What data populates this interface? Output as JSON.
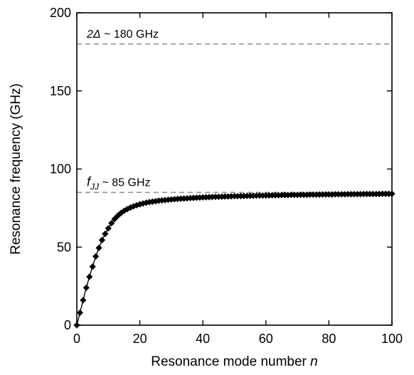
{
  "chart_data": {
    "type": "line",
    "title": "",
    "xlabel": "Resonance mode number",
    "xlabel_var": "n",
    "ylabel": "Resonance frequency (GHz)",
    "xlim": [
      0,
      100
    ],
    "ylim": [
      0,
      200
    ],
    "x_ticks": [
      0,
      20,
      40,
      60,
      80,
      100
    ],
    "y_ticks": [
      0,
      50,
      100,
      150,
      200
    ],
    "grid": false,
    "marker": "diamond",
    "colors": {
      "series": "#000000",
      "reference": "#8c8c8c"
    },
    "series": [
      {
        "x": [
          0,
          1,
          2,
          3,
          4,
          5,
          6,
          7,
          8,
          9,
          10,
          11,
          12,
          13,
          14,
          15,
          16,
          17,
          18,
          19,
          20,
          21,
          22,
          23,
          24,
          25,
          26,
          27,
          28,
          29,
          30,
          31,
          32,
          33,
          34,
          35,
          36,
          37,
          38,
          39,
          40,
          41,
          42,
          43,
          44,
          45,
          46,
          47,
          48,
          49,
          50,
          51,
          52,
          53,
          54,
          55,
          56,
          57,
          58,
          59,
          60,
          61,
          62,
          63,
          64,
          65,
          66,
          67,
          68,
          69,
          70,
          71,
          72,
          73,
          74,
          75,
          76,
          77,
          78,
          79,
          80,
          81,
          82,
          83,
          84,
          85,
          86,
          87,
          88,
          89,
          90,
          91,
          92,
          93,
          94,
          95,
          96,
          97,
          98,
          99,
          100
        ],
        "values": [
          0,
          8,
          16,
          24,
          31,
          37.5,
          44,
          49.5,
          54.5,
          58.5,
          62,
          65.3,
          68,
          70.1,
          71.8,
          73.2,
          74.3,
          75.3,
          76.1,
          76.8,
          77.4,
          77.9,
          78.4,
          78.8,
          79.1,
          79.4,
          79.7,
          79.9,
          80.1,
          80.3,
          80.5,
          80.7,
          80.8,
          81,
          81.1,
          81.2,
          81.4,
          81.5,
          81.6,
          81.7,
          81.8,
          81.9,
          82,
          82.1,
          82.2,
          82.2,
          82.3,
          82.4,
          82.4,
          82.5,
          82.6,
          82.6,
          82.7,
          82.7,
          82.8,
          82.8,
          82.9,
          82.9,
          83,
          83,
          83.1,
          83.1,
          83.2,
          83.2,
          83.2,
          83.3,
          83.3,
          83.3,
          83.4,
          83.4,
          83.4,
          83.5,
          83.5,
          83.5,
          83.6,
          83.6,
          83.6,
          83.6,
          83.7,
          83.7,
          83.7,
          83.7,
          83.8,
          83.8,
          83.8,
          83.8,
          83.9,
          83.9,
          83.9,
          83.9,
          83.9,
          84,
          84,
          84,
          84,
          84,
          84,
          84.1,
          84.1,
          84.1,
          84.1
        ]
      }
    ],
    "reference_lines": [
      {
        "y": 180,
        "label_main": "2Δ",
        "label_rest": " ~ 180 GHz"
      },
      {
        "y": 85,
        "label_main": "f",
        "label_sub": "JJ",
        "label_rest": " ~ 85 GHz"
      }
    ]
  }
}
